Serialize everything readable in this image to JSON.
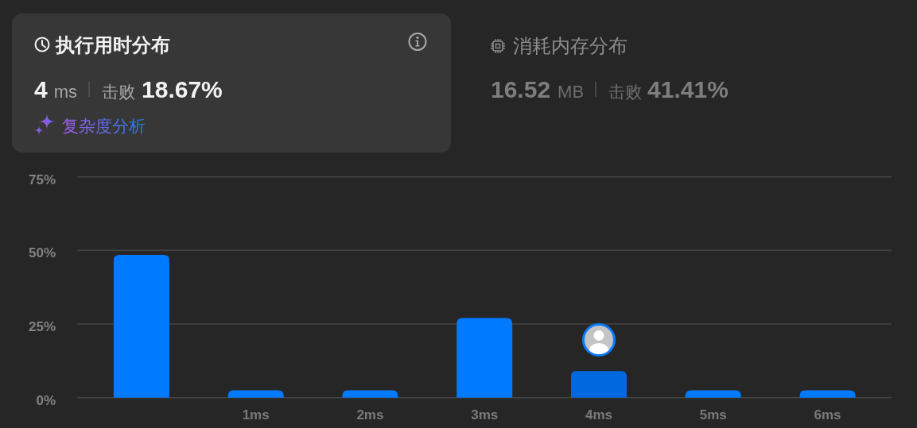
{
  "chart_data": {
    "type": "bar",
    "title": "执行用时分布",
    "categories": [
      null,
      "1ms",
      "2ms",
      "3ms",
      "4ms",
      "5ms",
      "6ms"
    ],
    "values": [
      48.5,
      2.5,
      2.5,
      27,
      9,
      2.5,
      2.5
    ],
    "colors": [
      "#007aff",
      "#007aff",
      "#007aff",
      "#007aff",
      "#0069e0",
      "#007aff",
      "#007aff"
    ],
    "ylim": [
      0,
      75
    ],
    "yticks": [
      {
        "value": 0,
        "label": "0%"
      },
      {
        "value": 25,
        "label": "25%"
      },
      {
        "value": 50,
        "label": "50%"
      },
      {
        "value": 75,
        "label": "75%"
      }
    ],
    "grid": "y",
    "annotations": [
      "4",
      "ms",
      "击败",
      "18.67%",
      "复杂度分析",
      "消耗内存分布",
      "16.52",
      "MB",
      "击败",
      "41.41%"
    ]
  }
}
